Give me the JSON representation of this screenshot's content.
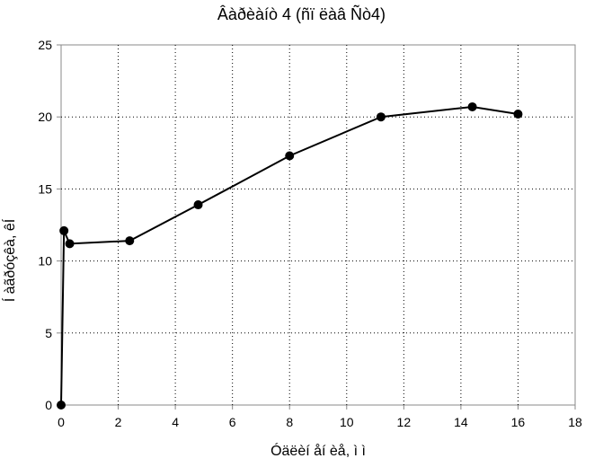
{
  "chart_data": {
    "type": "line",
    "title": "Âàðèàíò 4 (ñï ëàâ Ñò4)",
    "xlabel": "Óäëèí åí èå, ì ì",
    "ylabel": "Í àãðóçêà, êÍ",
    "xlim": [
      0,
      18
    ],
    "ylim": [
      0,
      25
    ],
    "xticks": [
      0,
      2,
      4,
      6,
      8,
      10,
      12,
      14,
      16,
      18
    ],
    "yticks": [
      0,
      5,
      10,
      15,
      20,
      25
    ],
    "grid": true,
    "legend": "none",
    "series": [
      {
        "x": [
          0,
          0.1,
          0.3,
          2.4,
          4.8,
          8.0,
          11.2,
          14.4,
          16.0
        ],
        "y": [
          0,
          12.1,
          11.2,
          11.4,
          13.9,
          17.3,
          20.0,
          20.7,
          20.2
        ]
      }
    ]
  },
  "colors": {
    "line": "#000000",
    "grid": "#000000",
    "axis": "#888888"
  }
}
